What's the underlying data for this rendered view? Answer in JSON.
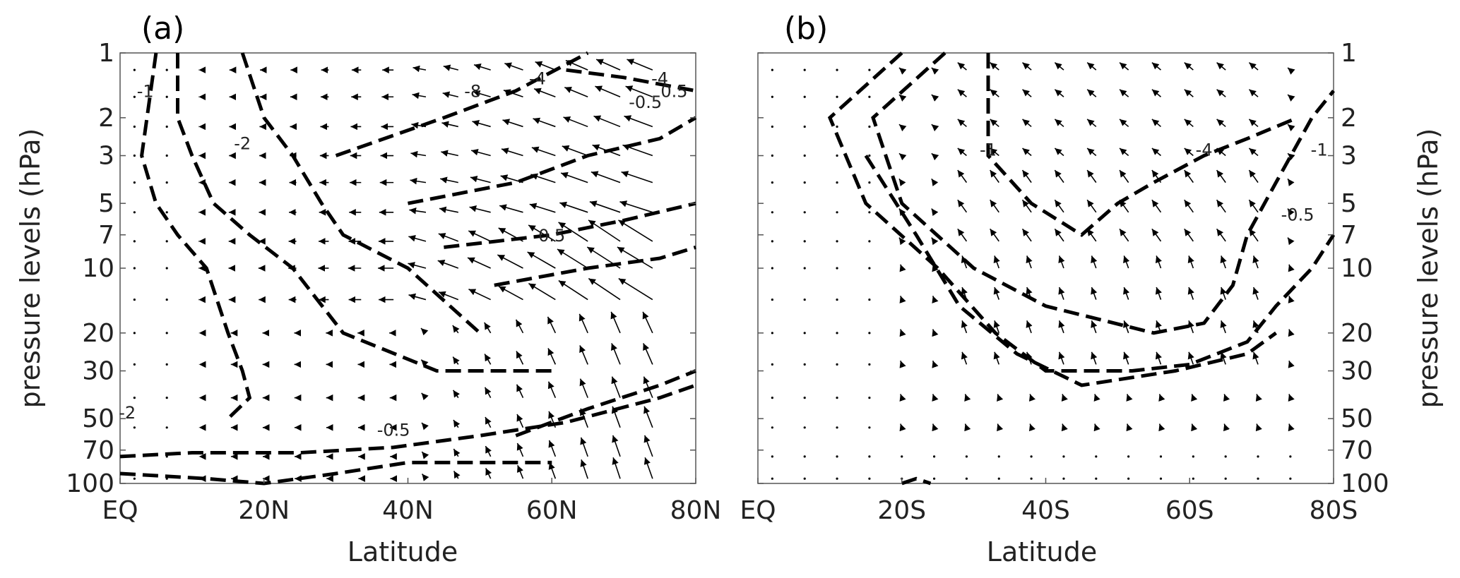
{
  "chart_data": [
    {
      "type": "vector-contour",
      "panel_label": "(a)",
      "xlabel": "Latitude",
      "ylabel": "pressure levels  (hPa)",
      "x_ticks": [
        "EQ",
        "20N",
        "40N",
        "60N",
        "80N"
      ],
      "x_range": [
        0,
        80
      ],
      "y_ticks": [
        "1",
        "2",
        "3",
        "5",
        "7",
        "10",
        "20",
        "30",
        "50",
        "70",
        "100"
      ],
      "y_range": [
        1,
        100
      ],
      "y_scale": "log",
      "contour_labels": [
        "-1",
        "-2",
        "-4",
        "-8",
        "-4",
        "-2",
        "-0.5",
        "0.5",
        "0.5",
        "-0.5"
      ]
    },
    {
      "type": "vector-contour",
      "panel_label": "(b)",
      "xlabel": "Latitude",
      "ylabel": "pressure levels  (hPa)",
      "x_ticks": [
        "EQ",
        "20S",
        "40S",
        "60S",
        "80S"
      ],
      "x_range": [
        0,
        80
      ],
      "y_ticks": [
        "1",
        "2",
        "3",
        "5",
        "7",
        "10",
        "20",
        "30",
        "50",
        "70",
        "100"
      ],
      "y_range": [
        1,
        100
      ],
      "y_scale": "log",
      "contour_labels": [
        "-1",
        "-4",
        "-1",
        "-0.5"
      ]
    }
  ]
}
